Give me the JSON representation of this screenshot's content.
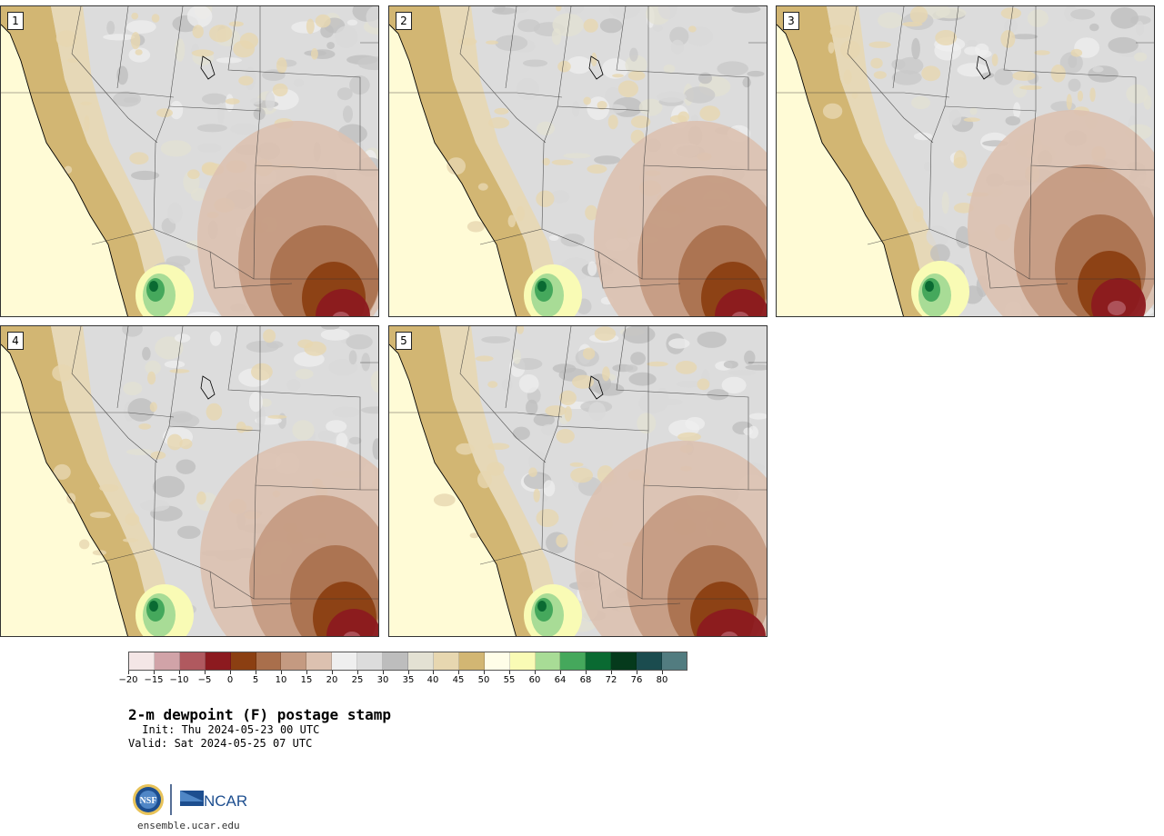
{
  "panels": [
    {
      "label": "1",
      "variant": 0
    },
    {
      "label": "2",
      "variant": 1
    },
    {
      "label": "3",
      "variant": 2
    },
    {
      "label": "4",
      "variant": 3
    },
    {
      "label": "5",
      "variant": 4
    }
  ],
  "colorbar": {
    "colors": [
      "#f4e6e6",
      "#d1a3a8",
      "#b0595f",
      "#8c1a1f",
      "#8b3f12",
      "#a96f4c",
      "#c49a81",
      "#dcc1b0",
      "#efefef",
      "#dcdcdc",
      "#bdbdbd",
      "#e3e1d3",
      "#e7d7b0",
      "#d2b673",
      "#fffde8",
      "#f9fbb5",
      "#a8dc96",
      "#45a85c",
      "#0a6a32",
      "#053a1c",
      "#1b4c4f",
      "#527c80"
    ],
    "tick_labels": [
      "−20",
      "−15",
      "−10",
      "−5",
      "0",
      "5",
      "10",
      "15",
      "20",
      "25",
      "30",
      "35",
      "40",
      "45",
      "50",
      "55",
      "60",
      "64",
      "68",
      "72",
      "76",
      "80"
    ]
  },
  "title": "2-m dewpoint (F) postage stamp",
  "init": "Init: Thu 2024-05-23 00 UTC",
  "valid": "Valid: Sat 2024-05-25 07 UTC",
  "logos": {
    "nsf": "NSF",
    "ncar": "NCAR"
  },
  "url": "ensemble.ucar.edu"
}
